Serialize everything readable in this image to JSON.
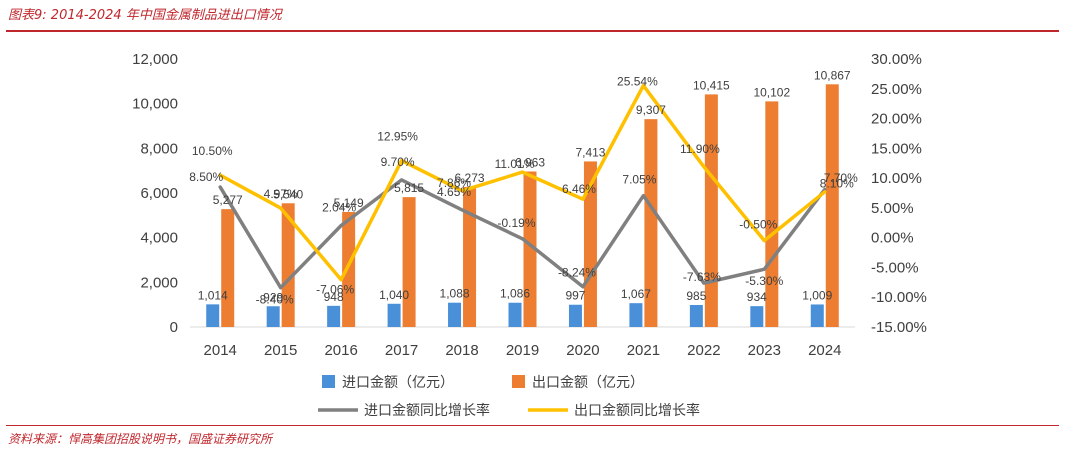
{
  "header": {
    "figure_no": "图表9:",
    "title": "2014-2024 年中国金属制品进出口情况"
  },
  "source": "资料来源：悍高集团招股说明书，国盛证券研究所",
  "chart_data": {
    "type": "bar",
    "categories": [
      "2014",
      "2015",
      "2016",
      "2017",
      "2018",
      "2019",
      "2020",
      "2021",
      "2022",
      "2023",
      "2024"
    ],
    "y_left": {
      "ylim": [
        0,
        12000
      ],
      "ticks": [
        "0",
        "2,000",
        "4,000",
        "6,000",
        "8,000",
        "10,000",
        "12,000"
      ]
    },
    "y_right": {
      "ylim": [
        -15,
        30
      ],
      "ticks": [
        "-15.00%",
        "-10.00%",
        "-5.00%",
        "0.00%",
        "5.00%",
        "10.00%",
        "15.00%",
        "20.00%",
        "25.00%",
        "30.00%"
      ]
    },
    "series": [
      {
        "name": "进口金额（亿元）",
        "kind": "bar",
        "color": "#4a90d9",
        "values": [
          1014,
          929,
          948,
          1040,
          1088,
          1086,
          997,
          1067,
          985,
          934,
          1009
        ],
        "labels": [
          "1,014",
          "929",
          "948",
          "1,040",
          "1,088",
          "1,086",
          "997",
          "1,067",
          "985",
          "934",
          "1,009"
        ]
      },
      {
        "name": "出口金额（亿元）",
        "kind": "bar",
        "color": "#ed7d31",
        "values": [
          5277,
          5540,
          5149,
          5815,
          6273,
          6963,
          7413,
          9307,
          10415,
          10102,
          10867
        ],
        "labels": [
          "5,277",
          "5,540",
          "5,149",
          "5,815",
          "6,273",
          "6,963",
          "7,413",
          "9,307",
          "10,415",
          "10,102",
          "10,867"
        ]
      },
      {
        "name": "进口金额同比增长率",
        "kind": "line",
        "axis": "right",
        "color": "#808080",
        "values": [
          8.5,
          -8.4,
          2.04,
          9.7,
          4.65,
          -0.19,
          -8.24,
          7.05,
          -7.63,
          -5.3,
          8.1
        ],
        "labels": [
          "8.50%",
          "-8.40%",
          "2.04%",
          "9.70%",
          "4.65%",
          "-0.19%",
          "-8.24%",
          "7.05%",
          "-7.63%",
          "-5.30%",
          "8.10%"
        ]
      },
      {
        "name": "出口金额同比增长率",
        "kind": "line",
        "axis": "right",
        "color": "#ffc000",
        "values": [
          10.5,
          4.97,
          -7.06,
          12.95,
          7.86,
          11.01,
          6.46,
          25.54,
          11.9,
          -0.5,
          7.7
        ],
        "labels": [
          "10.50%",
          "4.97%",
          "-7.06%",
          "12.95%",
          "7.86%",
          "11.01%",
          "6.46%",
          "25.54%",
          "11.90%",
          "-0.50%",
          "7.70%"
        ]
      }
    ],
    "legend": "bottom"
  }
}
